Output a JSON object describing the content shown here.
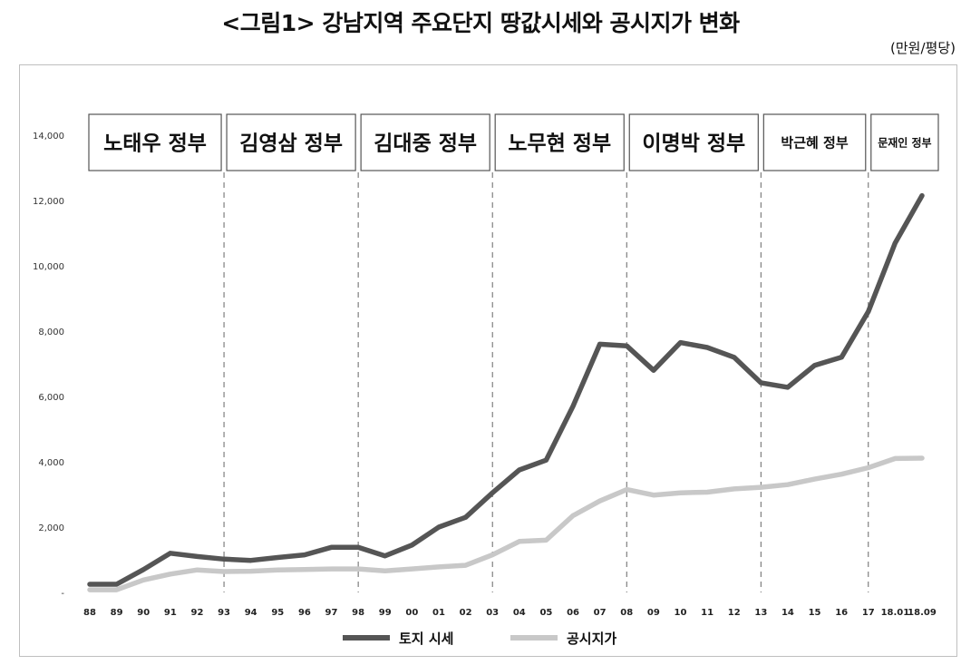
{
  "title": "<그림1> 강남지역 주요단지 땅값시세와 공시지가 변화",
  "unit": "(만원/평당)",
  "chart_data": {
    "type": "line",
    "title": "<그림1> 강남지역 주요단지 땅값시세와 공시지가 변화",
    "unit": "(만원/평당)",
    "categories": [
      "88",
      "89",
      "90",
      "91",
      "92",
      "93",
      "94",
      "95",
      "96",
      "97",
      "98",
      "99",
      "00",
      "01",
      "02",
      "03",
      "04",
      "05",
      "06",
      "07",
      "08",
      "09",
      "10",
      "11",
      "12",
      "13",
      "14",
      "15",
      "16",
      "17",
      "18.01",
      "18.09"
    ],
    "y_ticks": [
      "-",
      "2,000",
      "4,000",
      "6,000",
      "8,000",
      "10,000",
      "12,000",
      "14,000"
    ],
    "ylim": [
      0,
      14000
    ],
    "series": [
      {
        "name": "토지 시세",
        "color": "#555555",
        "values": [
          250,
          250,
          700,
          1200,
          1100,
          1020,
          980,
          1070,
          1150,
          1380,
          1380,
          1120,
          1450,
          2000,
          2300,
          3050,
          3750,
          4050,
          5700,
          7600,
          7550,
          6800,
          7650,
          7500,
          7200,
          6420,
          6280,
          6950,
          7200,
          8600,
          10700,
          12150
        ]
      },
      {
        "name": "공시지가",
        "color": "#c8c8c8",
        "values": [
          80,
          80,
          380,
          560,
          690,
          640,
          650,
          690,
          700,
          720,
          720,
          660,
          720,
          780,
          830,
          1150,
          1560,
          1600,
          2350,
          2800,
          3150,
          2980,
          3050,
          3070,
          3170,
          3220,
          3300,
          3470,
          3620,
          3820,
          4100,
          4110
        ]
      }
    ],
    "eras": [
      {
        "label": "노태우 정부",
        "start": 0,
        "end": 5
      },
      {
        "label": "김영삼 정부",
        "start": 5,
        "end": 10
      },
      {
        "label": "김대중 정부",
        "start": 10,
        "end": 15
      },
      {
        "label": "노무현 정부",
        "start": 15,
        "end": 20
      },
      {
        "label": "이명박 정부",
        "start": 20,
        "end": 25
      },
      {
        "label": "박근혜 정부",
        "start": 25,
        "end": 29
      },
      {
        "label": "문재인 정부",
        "start": 29,
        "end": 31
      }
    ],
    "grid": false,
    "legend_position": "bottom"
  }
}
